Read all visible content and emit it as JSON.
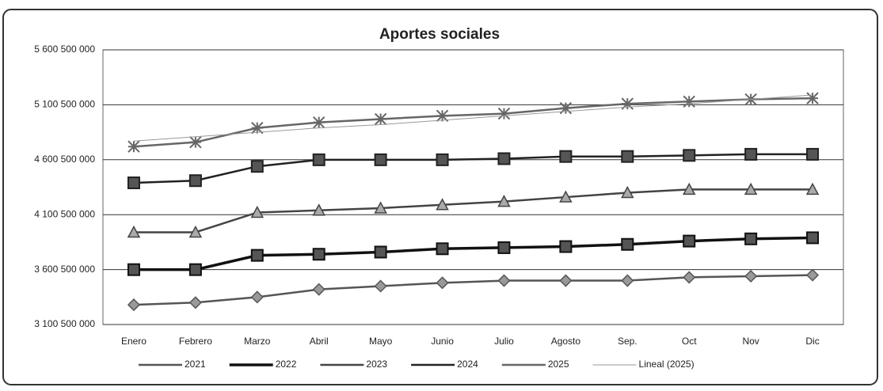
{
  "chart_data": {
    "type": "line",
    "title": "Aportes sociales",
    "categories": [
      "Enero",
      "Febrero",
      "Marzo",
      "Abril",
      "Mayo",
      "Junio",
      "Julio",
      "Agosto",
      "Sep.",
      "Oct",
      "Nov",
      "Dic"
    ],
    "series": [
      {
        "name": "2021",
        "color": "#555555",
        "marker": "diamond",
        "values": [
          3280000000,
          3300000000,
          3350000000,
          3420000000,
          3450000000,
          3480000000,
          3500000000,
          3500000000,
          3500000000,
          3530000000,
          3540000000,
          3550000000
        ]
      },
      {
        "name": "2022",
        "color": "#111111",
        "marker": "square",
        "values": [
          3600000000,
          3600000000,
          3730000000,
          3740000000,
          3760000000,
          3790000000,
          3800000000,
          3810000000,
          3830000000,
          3860000000,
          3880000000,
          3890000000
        ]
      },
      {
        "name": "2023",
        "color": "#444444",
        "marker": "triangle",
        "values": [
          3940000000,
          3940000000,
          4120000000,
          4140000000,
          4160000000,
          4190000000,
          4220000000,
          4260000000,
          4300000000,
          4330000000,
          4330000000,
          4330000000
        ]
      },
      {
        "name": "2024",
        "color": "#222222",
        "marker": "square",
        "values": [
          4390000000,
          4410000000,
          4540000000,
          4600000000,
          4600000000,
          4600000000,
          4610000000,
          4630000000,
          4630000000,
          4640000000,
          4650000000,
          4650000000
        ]
      },
      {
        "name": "2025",
        "color": "#666666",
        "marker": "star",
        "values": [
          4720000000,
          4760000000,
          4890000000,
          4940000000,
          4970000000,
          5000000000,
          5020000000,
          5070000000,
          5110000000,
          5130000000,
          5150000000,
          5160000000
        ]
      },
      {
        "name": "Lineal (2025)",
        "color": "#999999",
        "marker": "none",
        "values": [
          4770000000,
          4810000000,
          4850000000,
          4890000000,
          4920000000,
          4960000000,
          5000000000,
          5040000000,
          5080000000,
          5110000000,
          5150000000,
          5190000000
        ]
      }
    ],
    "ylim": [
      3100500000,
      5600500000
    ],
    "yticks": [
      {
        "value": 3100500000,
        "label": "3 100 500 000"
      },
      {
        "value": 3600500000,
        "label": "3 600 500 000"
      },
      {
        "value": 4100500000,
        "label": "4 100 500 000"
      },
      {
        "value": 4600500000,
        "label": "4 600 500 000"
      },
      {
        "value": 5100500000,
        "label": "5 100 500 000"
      },
      {
        "value": 5600500000,
        "label": "5 600 500 000"
      }
    ],
    "grid": true,
    "legend": "bottom"
  }
}
